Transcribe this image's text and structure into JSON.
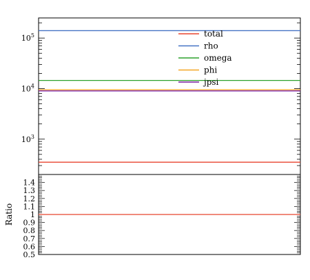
{
  "chart_data": [
    {
      "type": "line",
      "yscale": "log",
      "ylim": [
        200,
        250000
      ],
      "y_tick_labels": [
        {
          "base": "10",
          "exp": "3",
          "value": 1000
        },
        {
          "base": "10",
          "exp": "4",
          "value": 10000
        },
        {
          "base": "10",
          "exp": "5",
          "value": 100000
        }
      ],
      "legend_position": "top-right",
      "series": [
        {
          "name": "total",
          "color": "#e8432e",
          "y": 350
        },
        {
          "name": "rho",
          "color": "#4472c4",
          "y": 140000
        },
        {
          "name": "omega",
          "color": "#2ca02c",
          "y": 14500
        },
        {
          "name": "phi",
          "color": "#f5a623",
          "y": 9500
        },
        {
          "name": "jpsi",
          "color": "#7b1fa2",
          "y": 9000
        }
      ]
    },
    {
      "type": "line",
      "ylabel": "Ratio",
      "ylim": [
        0.5,
        1.5
      ],
      "y_ticks": [
        "0.5",
        "0.6",
        "0.7",
        "0.8",
        "0.9",
        "1",
        "1.1",
        "1.2",
        "1.3",
        "1.4"
      ],
      "series": [
        {
          "color": "#e8432e",
          "y": 1.0
        }
      ]
    }
  ]
}
